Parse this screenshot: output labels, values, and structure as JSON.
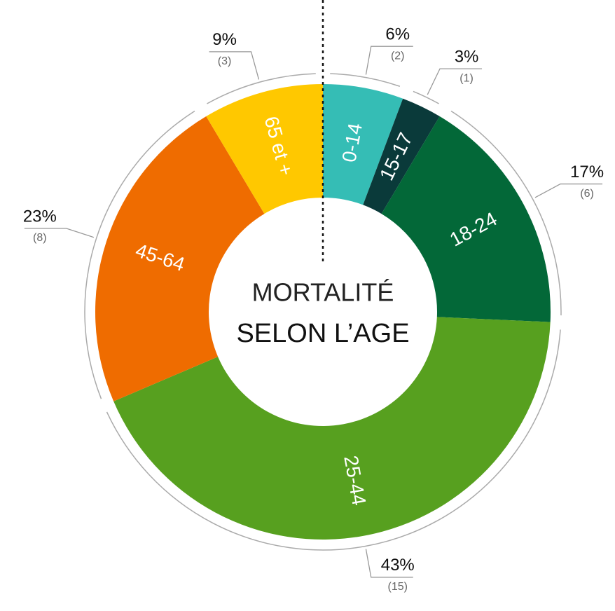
{
  "chart_data": {
    "type": "donut",
    "title": "MORTALITÉ",
    "subtitle": "SELON L’AGE",
    "categories": [
      "0-14",
      "15-17",
      "18-24",
      "25-44",
      "45-64",
      "65 et +"
    ],
    "values": [
      2,
      1,
      6,
      15,
      8,
      3
    ],
    "value_labels": [
      "(2)",
      "(1)",
      "(6)",
      "(15)",
      "(8)",
      "(3)"
    ],
    "percentages": [
      6,
      3,
      17,
      43,
      23,
      9
    ],
    "percentage_labels": [
      "6%",
      "3%",
      "17%",
      "43%",
      "23%",
      "9%"
    ],
    "colors": [
      "#35bdb5",
      "#0a3a3a",
      "#036838",
      "#57a01f",
      "#ef6c00",
      "#ffc800"
    ]
  }
}
